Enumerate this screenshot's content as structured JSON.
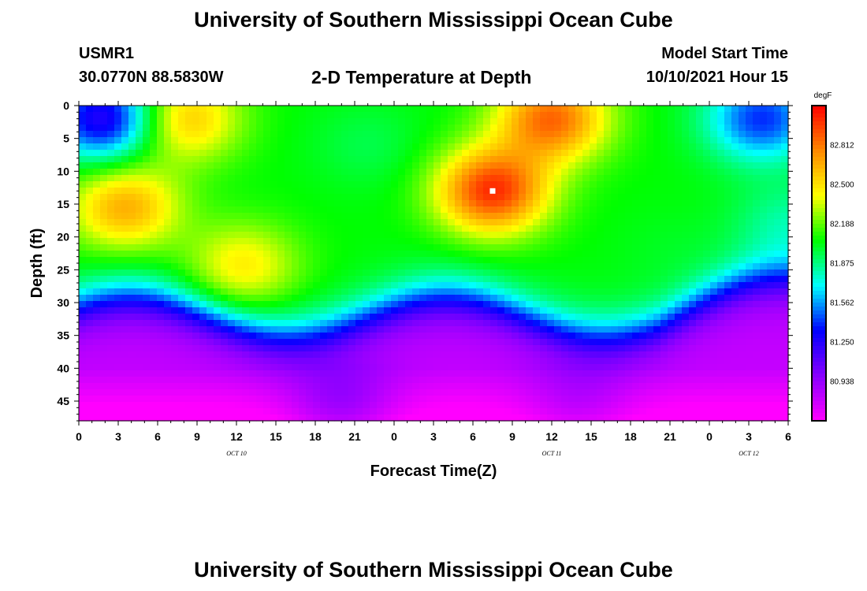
{
  "header": {
    "title": "University of Southern Mississippi Ocean Cube",
    "station": "USMR1",
    "coords": "30.0770N  88.5830W",
    "subtitle": "2-D Temperature at Depth",
    "model_start_label": "Model Start Time",
    "model_start_time": "10/10/2021 Hour 15"
  },
  "footer": {
    "title": "University of Southern Mississippi Ocean Cube"
  },
  "chart_data": {
    "type": "heatmap",
    "title": "2-D Temperature at Depth",
    "xlabel": "Forecast Time(Z)",
    "ylabel": "Depth (ft)",
    "x_hours_range": [
      0,
      54
    ],
    "xticks": [
      "0",
      "3",
      "6",
      "9",
      "12",
      "15",
      "18",
      "21",
      "0",
      "3",
      "6",
      "9",
      "12",
      "15",
      "18",
      "21",
      "0",
      "3",
      "6"
    ],
    "x_date_labels": [
      {
        "label": "OCT 10",
        "hour": 12
      },
      {
        "label": "OCT 11",
        "hour": 36
      },
      {
        "label": "OCT 12",
        "hour": 51
      }
    ],
    "ylim": [
      0,
      48
    ],
    "yticks": [
      "0",
      "5",
      "10",
      "15",
      "20",
      "25",
      "30",
      "35",
      "40",
      "45"
    ],
    "colorbar": {
      "unit": "degF",
      "range": [
        80.625,
        83.125
      ],
      "tick_labels": [
        "82.812",
        "82.500",
        "82.188",
        "81.875",
        "81.562",
        "81.250",
        "80.938"
      ],
      "colors": [
        "#ff00ff",
        "#8800ff",
        "#0000ff",
        "#00ffff",
        "#00ff00",
        "#ffff00",
        "#ff8800",
        "#ff0000"
      ]
    },
    "marker": {
      "hour": 31.5,
      "depth": 13
    },
    "field_features": [
      {
        "hour": 3.5,
        "depth": 15.5,
        "value": 82.65
      },
      {
        "hour": 12.5,
        "depth": 24.5,
        "value": 82.45
      },
      {
        "hour": 8,
        "depth": 2,
        "value": 82.6
      },
      {
        "hour": 22,
        "depth": 6,
        "value": 81.95
      },
      {
        "hour": 31.5,
        "depth": 13,
        "value": 83.0
      },
      {
        "hour": 36,
        "depth": 2,
        "value": 82.85
      },
      {
        "hour": 2,
        "depth": 2,
        "value": 81.2
      },
      {
        "hour": 52,
        "depth": 2,
        "value": 81.4
      },
      {
        "hour": 45,
        "depth": 22,
        "value": 82.0
      },
      {
        "hour": 54,
        "depth": 18,
        "value": 81.8
      },
      {
        "hour": 20,
        "depth": 46,
        "value": 80.9
      },
      {
        "hour": 38,
        "depth": 46,
        "value": 80.8
      }
    ]
  }
}
